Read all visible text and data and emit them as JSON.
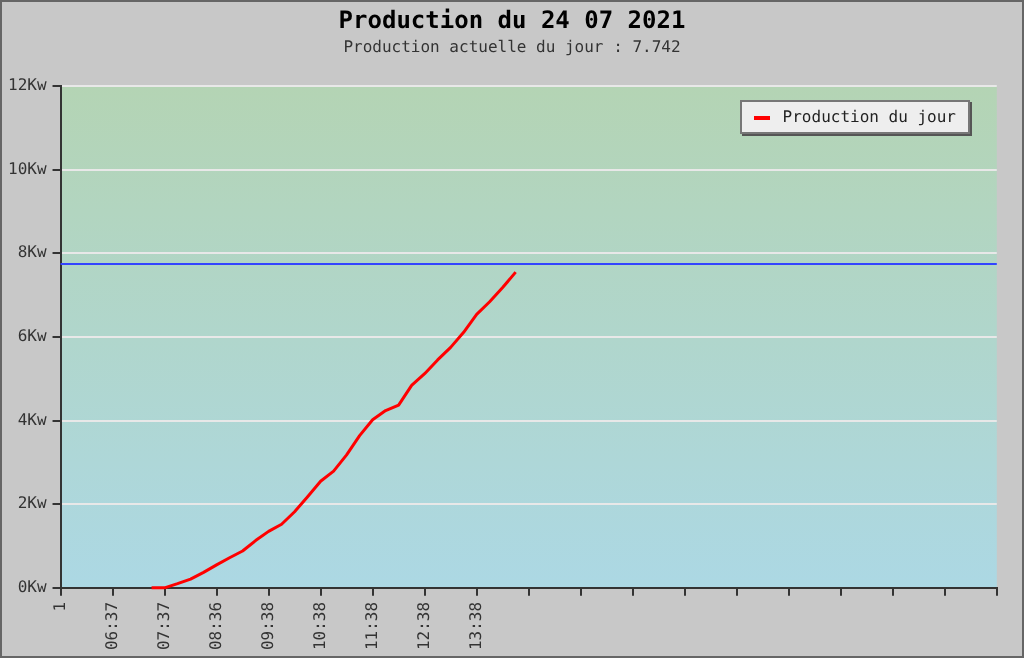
{
  "chart_data": {
    "type": "line",
    "title": "Production du 24 07 2021",
    "subtitle": "Production actuelle du jour : 7.742",
    "categories": [
      "1",
      null,
      null,
      null,
      "06:37",
      null,
      null,
      null,
      "07:37",
      null,
      null,
      null,
      "08:36",
      null,
      null,
      null,
      "09:38",
      null,
      null,
      null,
      "10:38",
      null,
      null,
      null,
      "11:38",
      null,
      null,
      null,
      "12:38",
      null,
      null,
      null,
      "13:38",
      null,
      null,
      null,
      null,
      null,
      null,
      null,
      null,
      null,
      null,
      null,
      null,
      null,
      null,
      null,
      null,
      null,
      null,
      null,
      null,
      null,
      null,
      null,
      null,
      null,
      null,
      null,
      null,
      null,
      null,
      null,
      null,
      null,
      null,
      null,
      null,
      null,
      null,
      null,
      null
    ],
    "series": [
      {
        "name": "Production du jour",
        "color": "#ff0000",
        "values": [
          null,
          null,
          null,
          null,
          null,
          null,
          null,
          0,
          0,
          0.1,
          0.21,
          0.37,
          0.55,
          0.72,
          0.88,
          1.13,
          1.35,
          1.52,
          1.82,
          2.18,
          2.55,
          2.79,
          3.18,
          3.64,
          4.02,
          4.24,
          4.37,
          4.84,
          5.12,
          5.45,
          5.75,
          6.11,
          6.54,
          6.84,
          7.18,
          7.55,
          null,
          null,
          null,
          null,
          null,
          null,
          null,
          null,
          null,
          null,
          null,
          null,
          null,
          null,
          null,
          null,
          null,
          null,
          null,
          null,
          null,
          null,
          null,
          null,
          null,
          null,
          null,
          null,
          null,
          null,
          null,
          null,
          null,
          null,
          null,
          null,
          null
        ]
      }
    ],
    "ylim": [
      0,
      12
    ],
    "yticks": [
      {
        "value": 0,
        "label": "0Kw"
      },
      {
        "value": 2,
        "label": "2Kw"
      },
      {
        "value": 4,
        "label": "4Kw"
      },
      {
        "value": 6,
        "label": "6Kw"
      },
      {
        "value": 8,
        "label": "8Kw"
      },
      {
        "value": 10,
        "label": "10Kw"
      },
      {
        "value": 12,
        "label": "12Kw"
      }
    ],
    "ref_lines": [
      {
        "axis": "y",
        "value": 7.742,
        "color": "#3344ff"
      }
    ],
    "grid": "y",
    "legend": "top right",
    "marker": "none",
    "line_style": "solid"
  }
}
